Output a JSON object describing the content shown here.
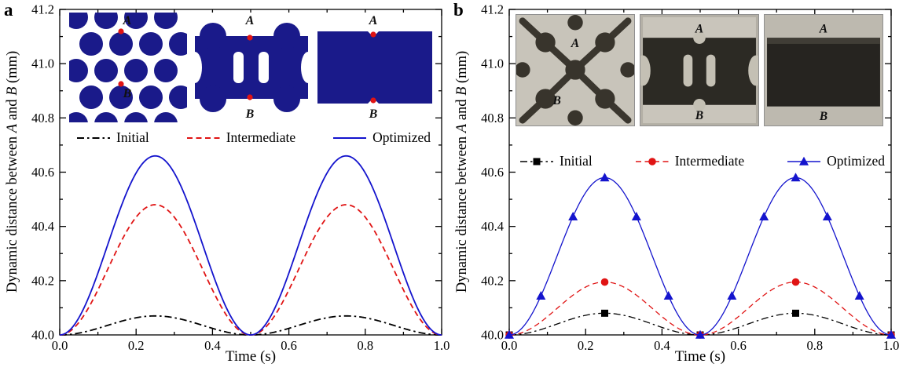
{
  "figure": {
    "panels": [
      {
        "letter": "a",
        "x_axis_label": "Time (s)",
        "y_axis_label_parts": {
          "pre": "Dynamic distance between ",
          "a": "A",
          "mid": " and ",
          "b": "B",
          "post": " (mm)"
        },
        "insets": [
          {
            "name": "initial-topology",
            "label_a": "A",
            "label_b": "B"
          },
          {
            "name": "intermediate-topology",
            "label_a": "A",
            "label_b": "B"
          },
          {
            "name": "optimized-topology",
            "label_a": "A",
            "label_b": "B"
          }
        ]
      },
      {
        "letter": "b",
        "x_axis_label": "Time (s)",
        "y_axis_label_parts": {
          "pre": "Dynamic distance between ",
          "a": "A",
          "mid": " and ",
          "b": "B",
          "post": " (mm)"
        },
        "insets": [
          {
            "name": "initial-specimen-photo",
            "label_a": "A",
            "label_b": "B"
          },
          {
            "name": "intermediate-specimen-photo",
            "label_a": "A",
            "label_b": "B"
          },
          {
            "name": "optimized-specimen-photo",
            "label_a": "A",
            "label_b": "B"
          }
        ]
      }
    ]
  },
  "colors": {
    "initial": "#000000",
    "intermediate": "#e01414",
    "optimized": "#1414cd",
    "inset_navy": "#1a1a8a",
    "point_marker_red": "#e01414"
  },
  "chart_data": [
    {
      "type": "line",
      "panel": "a",
      "title": "",
      "xlabel": "Time (s)",
      "ylabel": "Dynamic distance between A and B (mm)",
      "xlim": [
        0.0,
        1.0
      ],
      "ylim": [
        40.0,
        41.2
      ],
      "x_major_ticks": [
        0.0,
        0.2,
        0.4,
        0.6,
        0.8,
        1.0
      ],
      "x_minor_step": 0.1,
      "y_major_ticks": [
        40.0,
        40.2,
        40.4,
        40.6,
        40.8,
        41.0,
        41.2
      ],
      "y_minor_step": 0.1,
      "grid": "off",
      "legend_position": "inside, horizontal row below insets",
      "baseline": 40.0,
      "waveform": "y(t) = baseline + amplitude*sin(2*pi*t)^2; minima 40.0 at t=0,0.5,1.0; peaks at t=0.25,0.75",
      "series": [
        {
          "name": "Initial",
          "color": "#000000",
          "line_style": "dash-dot",
          "marker": "none",
          "amplitude": 0.07,
          "peak_y": 40.07,
          "peaks_x": [
            0.25,
            0.75
          ],
          "zeros_x": [
            0.0,
            0.5,
            1.0
          ]
        },
        {
          "name": "Intermediate",
          "color": "#e01414",
          "line_style": "dashed",
          "marker": "none",
          "amplitude": 0.48,
          "peak_y": 40.48,
          "peaks_x": [
            0.25,
            0.75
          ],
          "zeros_x": [
            0.0,
            0.5,
            1.0
          ]
        },
        {
          "name": "Optimized",
          "color": "#1414cd",
          "line_style": "solid",
          "marker": "none",
          "amplitude": 0.66,
          "peak_y": 40.66,
          "peaks_x": [
            0.25,
            0.75
          ],
          "zeros_x": [
            0.0,
            0.5,
            1.0
          ]
        }
      ]
    },
    {
      "type": "line",
      "panel": "b",
      "title": "",
      "xlabel": "Time (s)",
      "ylabel": "Dynamic distance between A and B (mm)",
      "xlim": [
        0.0,
        1.0
      ],
      "ylim": [
        40.0,
        41.2
      ],
      "x_major_ticks": [
        0.0,
        0.2,
        0.4,
        0.6,
        0.8,
        1.0
      ],
      "x_minor_step": 0.1,
      "y_major_ticks": [
        40.0,
        40.2,
        40.4,
        40.6,
        40.8,
        41.0,
        41.2
      ],
      "y_minor_step": 0.1,
      "grid": "off",
      "legend_position": "inside, horizontal row below photos",
      "baseline": 40.0,
      "waveform": "y(t) = baseline + amplitude*sin(2*pi*t)^2; minima 40.0 at t=0,0.5,1.0; peaks at t=0.25,0.75",
      "series": [
        {
          "name": "Initial",
          "color": "#000000",
          "line_style": "dash-dot",
          "marker": "square",
          "amplitude": 0.08,
          "peak_y": 40.08,
          "peaks_x": [
            0.25,
            0.75
          ],
          "zeros_x": [
            0.0,
            0.5,
            1.0
          ],
          "marker_x": [
            0,
            0.25,
            0.5,
            0.75,
            1
          ]
        },
        {
          "name": "Intermediate",
          "color": "#e01414",
          "line_style": "dashed",
          "marker": "circle",
          "amplitude": 0.195,
          "peak_y": 40.195,
          "peaks_x": [
            0.25,
            0.75
          ],
          "zeros_x": [
            0.0,
            0.5,
            1.0
          ],
          "marker_x": [
            0,
            0.25,
            0.5,
            0.75,
            1
          ]
        },
        {
          "name": "Optimized",
          "color": "#1414cd",
          "line_style": "solid",
          "marker": "triangle",
          "amplitude": 0.58,
          "peak_y": 40.58,
          "peaks_x": [
            0.25,
            0.75
          ],
          "zeros_x": [
            0.0,
            0.5,
            1.0
          ],
          "marker_x": [
            0,
            0.083,
            0.167,
            0.25,
            0.333,
            0.417,
            0.5,
            0.583,
            0.667,
            0.75,
            0.833,
            0.917,
            1
          ]
        }
      ]
    }
  ]
}
